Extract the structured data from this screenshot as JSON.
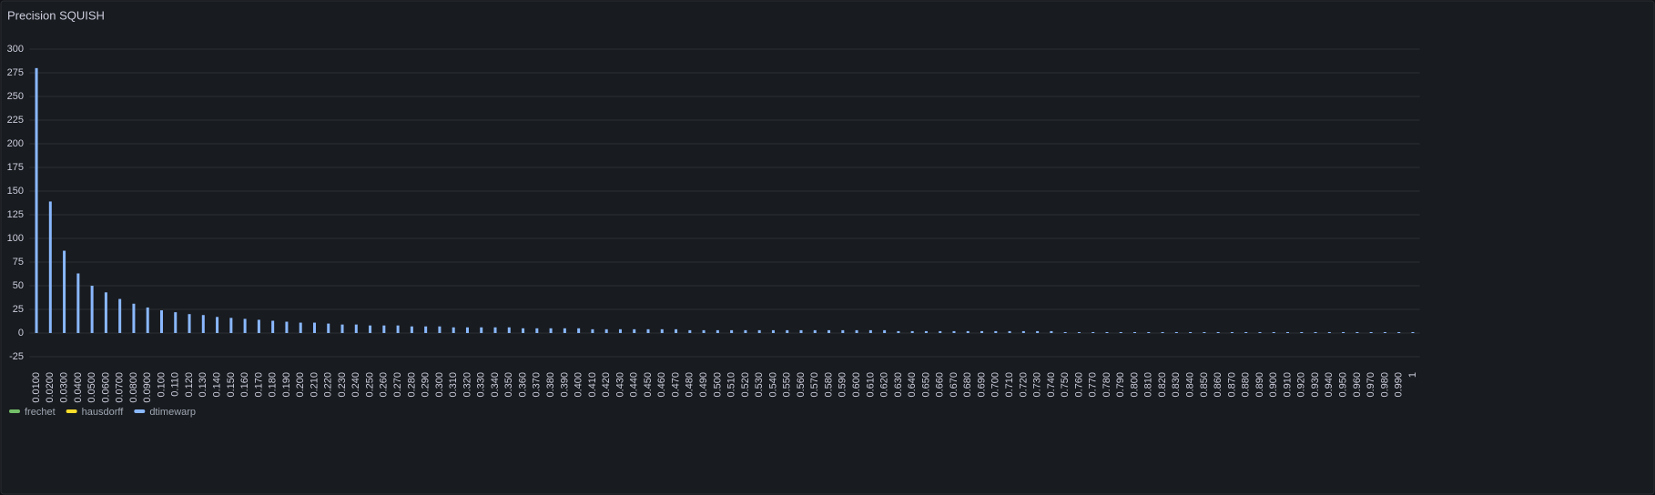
{
  "chart_data": {
    "type": "bar",
    "title": "Precision SQUISH",
    "categories": [
      "0.0100",
      "0.0200",
      "0.0300",
      "0.0400",
      "0.0500",
      "0.0600",
      "0.0700",
      "0.0800",
      "0.0900",
      "0.100",
      "0.110",
      "0.120",
      "0.130",
      "0.140",
      "0.150",
      "0.160",
      "0.170",
      "0.180",
      "0.190",
      "0.200",
      "0.210",
      "0.220",
      "0.230",
      "0.240",
      "0.250",
      "0.260",
      "0.270",
      "0.280",
      "0.290",
      "0.300",
      "0.310",
      "0.320",
      "0.330",
      "0.340",
      "0.350",
      "0.360",
      "0.370",
      "0.380",
      "0.390",
      "0.400",
      "0.410",
      "0.420",
      "0.430",
      "0.440",
      "0.450",
      "0.460",
      "0.470",
      "0.480",
      "0.490",
      "0.500",
      "0.510",
      "0.520",
      "0.530",
      "0.540",
      "0.550",
      "0.560",
      "0.570",
      "0.580",
      "0.590",
      "0.600",
      "0.610",
      "0.620",
      "0.630",
      "0.640",
      "0.650",
      "0.660",
      "0.670",
      "0.680",
      "0.690",
      "0.700",
      "0.710",
      "0.720",
      "0.730",
      "0.740",
      "0.750",
      "0.760",
      "0.770",
      "0.780",
      "0.790",
      "0.800",
      "0.810",
      "0.820",
      "0.830",
      "0.840",
      "0.850",
      "0.860",
      "0.870",
      "0.880",
      "0.890",
      "0.900",
      "0.910",
      "0.920",
      "0.930",
      "0.940",
      "0.950",
      "0.960",
      "0.970",
      "0.980",
      "0.990",
      "1"
    ],
    "series": [
      {
        "name": "frechet",
        "color": "#73bf69",
        "values": [
          0,
          0,
          0,
          0,
          0,
          0,
          0,
          0,
          0,
          0,
          0,
          0,
          0,
          0,
          0,
          0,
          0,
          0,
          0,
          0,
          0,
          0,
          0,
          0,
          0,
          0,
          0,
          0,
          0,
          0,
          0,
          0,
          0,
          0,
          0,
          0,
          0,
          0,
          0,
          0,
          0,
          0,
          0,
          0,
          0,
          0,
          0,
          0,
          0,
          0,
          0,
          0,
          0,
          0,
          0,
          0,
          0,
          0,
          0,
          0,
          0,
          0,
          0,
          0,
          0,
          0,
          0,
          0,
          0,
          0,
          0,
          0,
          0,
          0,
          0,
          0,
          0,
          0,
          0,
          0,
          0,
          0,
          0,
          0,
          0,
          0,
          0,
          0,
          0,
          0,
          0,
          0,
          0,
          0,
          0,
          0,
          0,
          0,
          0,
          0
        ]
      },
      {
        "name": "hausdorff",
        "color": "#fade2a",
        "values": [
          0,
          0,
          0,
          0,
          0,
          0,
          0,
          0,
          0,
          0,
          0,
          0,
          0,
          0,
          0,
          0,
          0,
          0,
          0,
          0,
          0,
          0,
          0,
          0,
          0,
          0,
          0,
          0,
          0,
          0,
          0,
          0,
          0,
          0,
          0,
          0,
          0,
          0,
          0,
          0,
          0,
          0,
          0,
          0,
          0,
          0,
          0,
          0,
          0,
          0,
          0,
          0,
          0,
          0,
          0,
          0,
          0,
          0,
          0,
          0,
          0,
          0,
          0,
          0,
          0,
          0,
          0,
          0,
          0,
          0,
          0,
          0,
          0,
          0,
          0,
          0,
          0,
          0,
          0,
          0,
          0,
          0,
          0,
          0,
          0,
          0,
          0,
          0,
          0,
          0,
          0,
          0,
          0,
          0,
          0,
          0,
          0,
          0,
          0,
          0
        ]
      },
      {
        "name": "dtimewarp",
        "color": "#8ab8ff",
        "values": [
          280,
          139,
          87,
          63,
          50,
          43,
          36,
          31,
          27,
          24,
          22,
          20,
          19,
          17,
          16,
          15,
          14,
          13,
          12,
          11,
          11,
          10,
          9,
          9,
          8,
          8,
          8,
          7,
          7,
          7,
          6,
          6,
          6,
          6,
          6,
          5,
          5,
          5,
          5,
          5,
          4,
          4,
          4,
          4,
          4,
          4,
          4,
          3,
          3,
          3,
          3,
          3,
          3,
          3,
          3,
          3,
          3,
          3,
          3,
          3,
          3,
          3,
          2,
          2,
          2,
          2,
          2,
          2,
          2,
          2,
          2,
          2,
          2,
          2,
          1,
          1,
          1,
          1,
          1,
          1,
          1,
          1,
          1,
          1,
          1,
          1,
          1,
          1,
          1,
          1,
          1,
          1,
          1,
          1,
          1,
          1,
          1,
          1,
          1,
          1
        ]
      }
    ],
    "ylim": [
      -37.5,
      313.5
    ],
    "yticks": [
      -25,
      0,
      25,
      50,
      75,
      100,
      125,
      150,
      175,
      200,
      225,
      250,
      275,
      300
    ],
    "grid": true
  }
}
